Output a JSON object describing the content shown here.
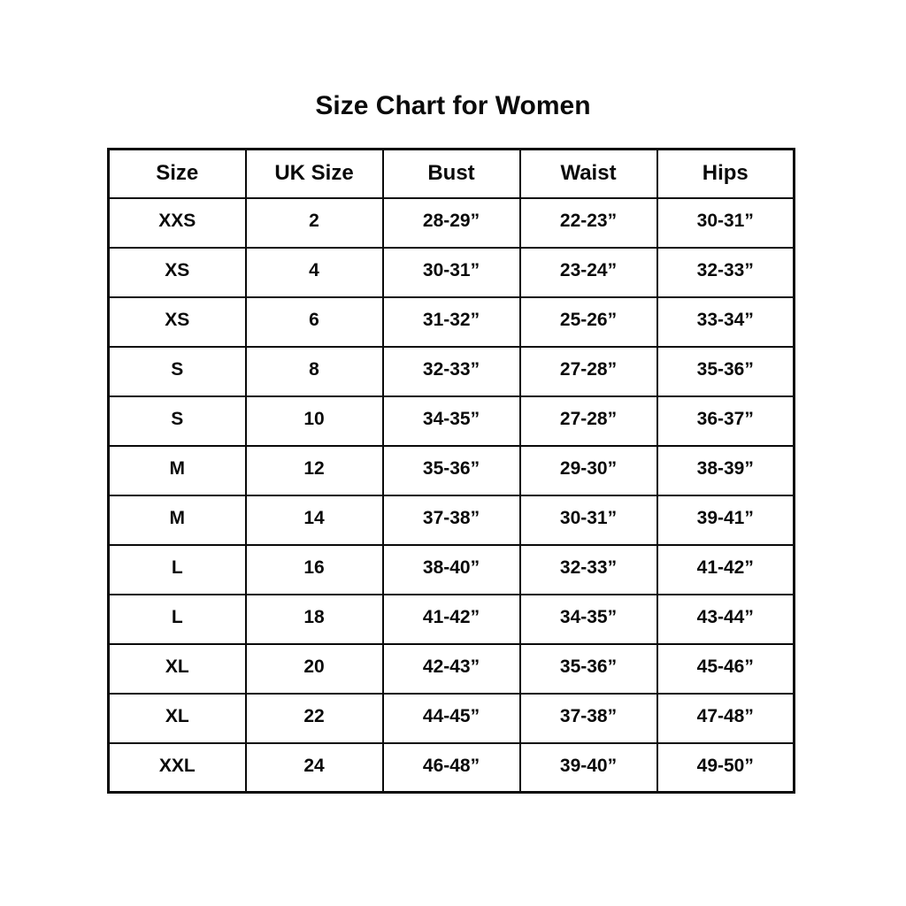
{
  "title": "Size Chart for Women",
  "table": {
    "columns": [
      "Size",
      "UK Size",
      "Bust",
      "Waist",
      "Hips"
    ],
    "rows": [
      [
        "XXS",
        "2",
        "28-29”",
        "22-23”",
        "30-31”"
      ],
      [
        "XS",
        "4",
        "30-31”",
        "23-24”",
        "32-33”"
      ],
      [
        "XS",
        "6",
        "31-32”",
        "25-26”",
        "33-34”"
      ],
      [
        "S",
        "8",
        "32-33”",
        "27-28”",
        "35-36”"
      ],
      [
        "S",
        "10",
        "34-35”",
        "27-28”",
        "36-37”"
      ],
      [
        "M",
        "12",
        "35-36”",
        "29-30”",
        "38-39”"
      ],
      [
        "M",
        "14",
        "37-38”",
        "30-31”",
        "39-41”"
      ],
      [
        "L",
        "16",
        "38-40”",
        "32-33”",
        "41-42”"
      ],
      [
        "L",
        "18",
        "41-42”",
        "34-35”",
        "43-44”"
      ],
      [
        "XL",
        "20",
        "42-43”",
        "35-36”",
        "45-46”"
      ],
      [
        "XL",
        "22",
        "44-45”",
        "37-38”",
        "47-48”"
      ],
      [
        "XXL",
        "24",
        "46-48”",
        "39-40”",
        "49-50”"
      ]
    ]
  }
}
